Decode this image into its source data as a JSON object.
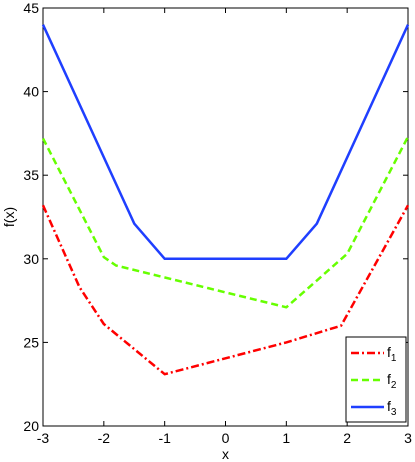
{
  "chart_data": {
    "type": "line",
    "xlabel": "x",
    "ylabel": "f(x)",
    "xlim": [
      -3,
      3
    ],
    "ylim": [
      20,
      45
    ],
    "xticks": [
      -3,
      -2,
      -1,
      0,
      1,
      2,
      3
    ],
    "yticks": [
      20,
      25,
      30,
      35,
      40,
      45
    ],
    "xtick_labels": [
      "-3",
      "-2",
      "-1",
      "0",
      "1",
      "2",
      "3"
    ],
    "ytick_labels": [
      "20",
      "25",
      "30",
      "35",
      "40",
      "45"
    ],
    "grid": false,
    "legend": "bottom-right",
    "series": [
      {
        "name": "f",
        "subscript": "1",
        "color": "#ff0000",
        "style": "dash-dot",
        "x": [
          -3,
          -2.4,
          -2,
          -1,
          1,
          1.9,
          3
        ],
        "y": [
          33.2,
          28.3,
          26.1,
          23.1,
          25.0,
          26.0,
          33.2
        ]
      },
      {
        "name": "f",
        "subscript": "2",
        "color": "#66ff00",
        "style": "dashed",
        "x": [
          -3,
          -2,
          -1.8,
          1,
          2,
          3
        ],
        "y": [
          37.2,
          30.1,
          29.6,
          27.1,
          30.3,
          37.3
        ]
      },
      {
        "name": "f",
        "subscript": "3",
        "color": "#1f3fff",
        "style": "solid",
        "x": [
          -3,
          -1.5,
          -1,
          1,
          1.5,
          3
        ],
        "y": [
          44.0,
          32.1,
          30.0,
          30.0,
          32.1,
          44.0
        ]
      }
    ]
  }
}
